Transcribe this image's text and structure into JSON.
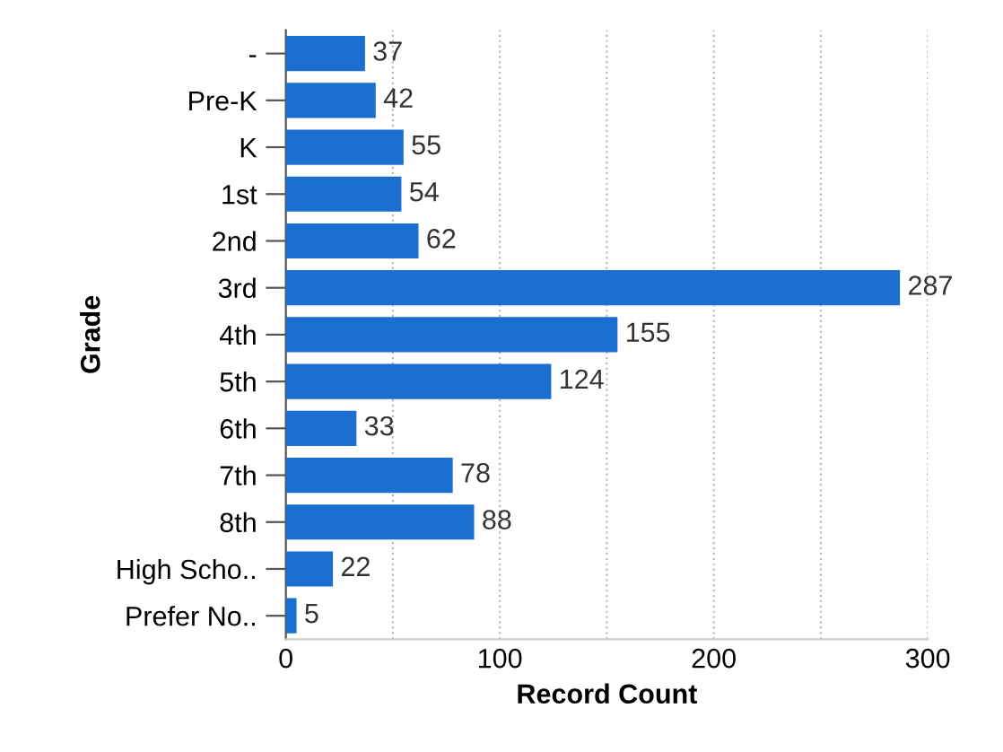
{
  "chart_data": {
    "type": "bar",
    "orientation": "horizontal",
    "xlabel": "Record Count",
    "ylabel": "Grade",
    "categories": [
      "-",
      "Pre-K",
      "K",
      "1st",
      "2nd",
      "3rd",
      "4th",
      "5th",
      "6th",
      "7th",
      "8th",
      "High Scho..",
      "Prefer No.."
    ],
    "values": [
      37,
      42,
      55,
      54,
      62,
      287,
      155,
      124,
      33,
      78,
      88,
      22,
      5
    ],
    "color": "#1a6fd1",
    "data_labels": true,
    "xlim": [
      0,
      300
    ],
    "xticks": [
      0,
      {
        "value": 50,
        "label": null
      },
      100,
      {
        "value": 150,
        "label": null
      },
      200,
      {
        "value": 250,
        "label": null
      },
      300
    ],
    "grid": "x",
    "legend": false
  }
}
